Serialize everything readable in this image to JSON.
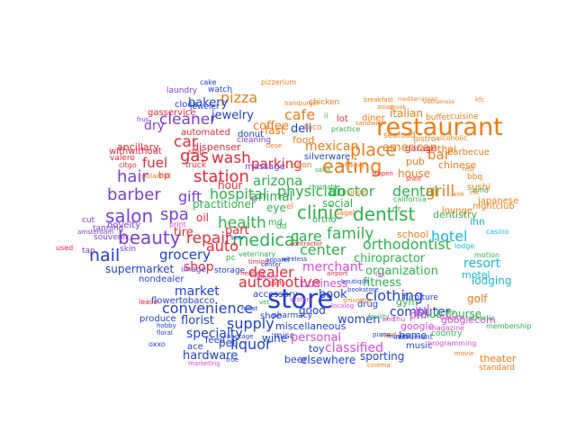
{
  "words": [
    {
      "text": "store",
      "color": "#1f3fd6"
    },
    {
      "text": "restaurant",
      "color": "#f07b14"
    },
    {
      "text": "salon",
      "color": "#7b3fd6"
    },
    {
      "text": "beauty",
      "color": "#7b3fd6"
    },
    {
      "text": "nail",
      "color": "#1f3fd6"
    },
    {
      "text": "hair",
      "color": "#7b3fd6"
    },
    {
      "text": "barber",
      "color": "#7b3fd6"
    },
    {
      "text": "spa",
      "color": "#7b3fd6"
    },
    {
      "text": "eating",
      "color": "#f07b14"
    },
    {
      "text": "place",
      "color": "#f07b14"
    },
    {
      "text": "clinic",
      "color": "#2bb34a"
    },
    {
      "text": "dentist",
      "color": "#2bb34a"
    },
    {
      "text": "medical",
      "color": "#2bb34a"
    },
    {
      "text": "family",
      "color": "#2bb34a"
    },
    {
      "text": "physician",
      "color": "#2bb34a"
    },
    {
      "text": "hospital",
      "color": "#2bb34a"
    },
    {
      "text": "doctor",
      "color": "#2bb34a"
    },
    {
      "text": "dental",
      "color": "#2bb34a"
    },
    {
      "text": "health",
      "color": "#2bb34a"
    },
    {
      "text": "center",
      "color": "#2bb34a"
    },
    {
      "text": "care",
      "color": "#2bb34a"
    },
    {
      "text": "orthodontist",
      "color": "#2bb34a"
    },
    {
      "text": "chiropractor",
      "color": "#2bb34a"
    },
    {
      "text": "station",
      "color": "#e8273a"
    },
    {
      "text": "gas",
      "color": "#e8273a"
    },
    {
      "text": "car",
      "color": "#e8273a"
    },
    {
      "text": "wash",
      "color": "#e8273a"
    },
    {
      "text": "repair",
      "color": "#e8273a"
    },
    {
      "text": "auto",
      "color": "#e8273a"
    },
    {
      "text": "tire",
      "color": "#e8273a"
    },
    {
      "text": "part",
      "color": "#e8273a"
    },
    {
      "text": "oil",
      "color": "#e8273a"
    },
    {
      "text": "fuel",
      "color": "#e8273a"
    },
    {
      "text": "parking",
      "color": "#e8273a"
    },
    {
      "text": "cleaner",
      "color": "#7b3fd6"
    },
    {
      "text": "dry",
      "color": "#7b3fd6"
    },
    {
      "text": "gift",
      "color": "#7b3fd6"
    },
    {
      "text": "pizza",
      "color": "#f07b14"
    },
    {
      "text": "cafe",
      "color": "#f07b14"
    },
    {
      "text": "coffee",
      "color": "#f07b14"
    },
    {
      "text": "grill",
      "color": "#f07b14"
    },
    {
      "text": "bar",
      "color": "#f07b14"
    },
    {
      "text": "food",
      "color": "#f07b14"
    },
    {
      "text": "mexican",
      "color": "#f07b14"
    },
    {
      "text": "american",
      "color": "#f07b14"
    },
    {
      "text": "italian",
      "color": "#f07b14"
    },
    {
      "text": "chinese",
      "color": "#f07b14"
    },
    {
      "text": "thai",
      "color": "#f07b14"
    },
    {
      "text": "fast",
      "color": "#f07b14"
    },
    {
      "text": "deli",
      "color": "#1f3fd6"
    },
    {
      "text": "bakery",
      "color": "#1f3fd6"
    },
    {
      "text": "jewelry",
      "color": "#1f3fd6"
    },
    {
      "text": "arizona",
      "color": "#2bb34a"
    },
    {
      "text": "animal",
      "color": "#2bb34a"
    },
    {
      "text": "hotel",
      "color": "#18b8d8"
    },
    {
      "text": "inn",
      "color": "#18b8d8"
    },
    {
      "text": "resort",
      "color": "#18b8d8"
    },
    {
      "text": "motel",
      "color": "#18b8d8"
    },
    {
      "text": "lodging",
      "color": "#18b8d8"
    },
    {
      "text": "grocery",
      "color": "#1f3fd6"
    },
    {
      "text": "supermarket",
      "color": "#1f3fd6"
    },
    {
      "text": "shop",
      "color": "#e8273a"
    },
    {
      "text": "market",
      "color": "#1f3fd6"
    },
    {
      "text": "convenience",
      "color": "#1f3fd6"
    },
    {
      "text": "supply",
      "color": "#1f3fd6"
    },
    {
      "text": "specialty",
      "color": "#1f3fd6"
    },
    {
      "text": "florist",
      "color": "#1f3fd6"
    },
    {
      "text": "hardware",
      "color": "#1f3fd6"
    },
    {
      "text": "liquor",
      "color": "#1f3fd6"
    },
    {
      "text": "automotive",
      "color": "#e8273a"
    },
    {
      "text": "dealer",
      "color": "#e8273a"
    },
    {
      "text": "merchant",
      "color": "#d64ad6"
    },
    {
      "text": "business",
      "color": "#d64ad6"
    },
    {
      "text": "book",
      "color": "#1f3fd6"
    },
    {
      "text": "clothing",
      "color": "#1f3fd6"
    },
    {
      "text": "organization",
      "color": "#2bb34a"
    },
    {
      "text": "fitness",
      "color": "#2bb34a"
    },
    {
      "text": "computer",
      "color": "#1f3fd6"
    },
    {
      "text": "personal",
      "color": "#d64ad6"
    },
    {
      "text": "classified",
      "color": "#d64ad6"
    },
    {
      "text": "elsewhere",
      "color": "#1f3fd6"
    },
    {
      "text": "sporting",
      "color": "#1f3fd6"
    },
    {
      "text": "women",
      "color": "#1f3fd6"
    },
    {
      "text": "golf",
      "color": "#f07b14"
    },
    {
      "text": "club",
      "color": "#2bb34a"
    },
    {
      "text": "course",
      "color": "#2bb34a"
    },
    {
      "text": "school",
      "color": "#f07b14"
    },
    {
      "text": "dentistry",
      "color": "#2bb34a"
    },
    {
      "text": "sushi",
      "color": "#f07b14"
    },
    {
      "text": "japanese",
      "color": "#f07b14"
    },
    {
      "text": "bbq",
      "color": "#f07b14"
    },
    {
      "text": "theater",
      "color": "#f07b14"
    },
    {
      "text": "standard",
      "color": "#f07b14"
    },
    {
      "text": "jul",
      "color": "#d64ad6"
    },
    {
      "text": "pm",
      "color": "#d64ad6"
    },
    {
      "text": "google",
      "color": "#d64ad6"
    },
    {
      "text": "googlecom",
      "color": "#d64ad6"
    },
    {
      "text": "wine",
      "color": "#1f3fd6"
    },
    {
      "text": "beer",
      "color": "#1f3fd6"
    },
    {
      "text": "toy",
      "color": "#1f3fd6"
    },
    {
      "text": "pet",
      "color": "#1f3fd6"
    },
    {
      "text": "ace",
      "color": "#1f3fd6"
    },
    {
      "text": "feed",
      "color": "#1f3fd6"
    },
    {
      "text": "good",
      "color": "#1f3fd6"
    },
    {
      "text": "miscellaneous",
      "color": "#1f3fd6"
    },
    {
      "text": "misc",
      "color": "#1f3fd6"
    },
    {
      "text": "home",
      "color": "#1f3fd6"
    },
    {
      "text": "music",
      "color": "#1f3fd6"
    },
    {
      "text": "produce",
      "color": "#1f3fd6"
    },
    {
      "text": "flowertobacco",
      "color": "#1f3fd6"
    },
    {
      "text": "nondealer",
      "color": "#1f3fd6"
    },
    {
      "text": "accessory",
      "color": "#1f3fd6"
    },
    {
      "text": "shoe",
      "color": "#1f3fd6"
    },
    {
      "text": "pharmacy",
      "color": "#1f3fd6"
    },
    {
      "text": "drug",
      "color": "#1f3fd6"
    },
    {
      "text": "gym",
      "color": "#2bb34a"
    },
    {
      "text": "tanning",
      "color": "#7b3fd6"
    },
    {
      "text": "novelty",
      "color": "#7b3fd6"
    },
    {
      "text": "souvenir",
      "color": "#7b3fd6"
    },
    {
      "text": "skin",
      "color": "#7b3fd6"
    },
    {
      "text": "cut",
      "color": "#7b3fd6"
    },
    {
      "text": "tan",
      "color": "#7b3fd6"
    },
    {
      "text": "hour",
      "color": "#e8273a"
    },
    {
      "text": "practitioner",
      "color": "#2bb34a"
    },
    {
      "text": "eye",
      "color": "#2bb34a"
    },
    {
      "text": "social",
      "color": "#2bb34a"
    },
    {
      "text": "house",
      "color": "#f07b14"
    },
    {
      "text": "pub",
      "color": "#f07b14"
    },
    {
      "text": "lounge",
      "color": "#f07b14"
    },
    {
      "text": "nightclub",
      "color": "#f07b14"
    },
    {
      "text": "barbecue",
      "color": "#f07b14"
    },
    {
      "text": "buffet",
      "color": "#f07b14"
    },
    {
      "text": "cuisine",
      "color": "#f07b14"
    },
    {
      "text": "diner",
      "color": "#f07b14"
    },
    {
      "text": "taco",
      "color": "#f07b14"
    },
    {
      "text": "seafood",
      "color": "#f07b14"
    },
    {
      "text": "bistro",
      "color": "#f07b14"
    },
    {
      "text": "alcoholic",
      "color": "#f07b14"
    },
    {
      "text": "chicken",
      "color": "#f07b14"
    },
    {
      "text": "breakfast",
      "color": "#f07b14"
    },
    {
      "text": "mediterranean",
      "color": "#f07b14"
    },
    {
      "text": "vietnamese",
      "color": "#f07b14"
    },
    {
      "text": "pizzerium",
      "color": "#f07b14"
    },
    {
      "text": "cake",
      "color": "#1f3fd6"
    },
    {
      "text": "laundry",
      "color": "#7b3fd6"
    },
    {
      "text": "watch",
      "color": "#1f3fd6"
    },
    {
      "text": "clock",
      "color": "#1f3fd6"
    },
    {
      "text": "jeweler",
      "color": "#1f3fd6"
    },
    {
      "text": "gasservice",
      "color": "#e8273a"
    },
    {
      "text": "ancillary",
      "color": "#e8273a"
    },
    {
      "text": "automated",
      "color": "#e8273a"
    },
    {
      "text": "dispenser",
      "color": "#e8273a"
    },
    {
      "text": "withwithout",
      "color": "#e8273a"
    },
    {
      "text": "valero",
      "color": "#e8273a"
    },
    {
      "text": "stop",
      "color": "#e8273a"
    },
    {
      "text": "citgo",
      "color": "#e8273a"
    },
    {
      "text": "truck",
      "color": "#e8273a"
    },
    {
      "text": "bp",
      "color": "#e8273a"
    },
    {
      "text": "donut",
      "color": "#1f3fd6"
    },
    {
      "text": "cleaning",
      "color": "#7b3fd6"
    },
    {
      "text": "massage",
      "color": "#7b3fd6"
    },
    {
      "text": "silverware",
      "color": "#1f3fd6"
    },
    {
      "text": "soon",
      "color": "#f07b14"
    },
    {
      "text": "garage",
      "color": "#e8273a"
    },
    {
      "text": "lot",
      "color": "#e8273a"
    },
    {
      "text": "el",
      "color": "#f07b14"
    },
    {
      "text": "ortho",
      "color": "#2bb34a"
    },
    {
      "text": "md",
      "color": "#2bb34a"
    },
    {
      "text": "dr",
      "color": "#2bb34a"
    },
    {
      "text": "dd",
      "color": "#2bb34a"
    },
    {
      "text": "pc",
      "color": "#2bb34a"
    },
    {
      "text": "veterinary",
      "color": "#2bb34a"
    },
    {
      "text": "storage",
      "color": "#1f3fd6"
    },
    {
      "text": "used",
      "color": "#e8273a"
    },
    {
      "text": "amsterdam",
      "color": "#7b3fd6"
    },
    {
      "text": "image",
      "color": "#7b3fd6"
    },
    {
      "text": "print",
      "color": "#d64ad6"
    },
    {
      "text": "lease",
      "color": "#e8273a"
    },
    {
      "text": "oxxo",
      "color": "#1f3fd6"
    },
    {
      "text": "marketing",
      "color": "#d64ad6"
    },
    {
      "text": "true",
      "color": "#1f3fd6"
    },
    {
      "text": "package",
      "color": "#1f3fd6"
    },
    {
      "text": "hobby",
      "color": "#1f3fd6"
    },
    {
      "text": "floral",
      "color": "#1f3fd6"
    },
    {
      "text": "meat",
      "color": "#1f3fd6"
    },
    {
      "text": "furniture",
      "color": "#1f3fd6"
    },
    {
      "text": "magazine",
      "color": "#d64ad6"
    },
    {
      "text": "datum",
      "color": "#d64ad6"
    },
    {
      "text": "rec",
      "color": "#2bb34a"
    },
    {
      "text": "athletic",
      "color": "#2bb34a"
    },
    {
      "text": "membership",
      "color": "#2bb34a"
    },
    {
      "text": "country",
      "color": "#2bb34a"
    },
    {
      "text": "programming",
      "color": "#d64ad6"
    },
    {
      "text": "movie",
      "color": "#f07b14"
    },
    {
      "text": "cinema",
      "color": "#f07b14"
    },
    {
      "text": "instrument",
      "color": "#1f3fd6"
    },
    {
      "text": "wed",
      "color": "#d64ad6"
    },
    {
      "text": "thu",
      "color": "#d64ad6"
    },
    {
      "text": "fax",
      "color": "#d64ad6"
    },
    {
      "text": "motion",
      "color": "#2bb34a"
    },
    {
      "text": "casino",
      "color": "#18b8d8"
    },
    {
      "text": "lodge",
      "color": "#18b8d8"
    },
    {
      "text": "dmd",
      "color": "#2bb34a"
    },
    {
      "text": "etc",
      "color": "#f07b14"
    },
    {
      "text": "wok",
      "color": "#f07b14"
    },
    {
      "text": "sport",
      "color": "#f07b14"
    },
    {
      "text": "musical",
      "color": "#1f3fd6"
    },
    {
      "text": "piano",
      "color": "#1f3fd6"
    },
    {
      "text": "serv",
      "color": "#1f3fd6"
    },
    {
      "text": "contractor",
      "color": "#e8273a"
    },
    {
      "text": "practice",
      "color": "#2bb34a"
    },
    {
      "text": "kfc",
      "color": "#f07b14"
    },
    {
      "text": "asian",
      "color": "#f07b14"
    },
    {
      "text": "greek",
      "color": "#f07b14"
    },
    {
      "text": "hamburger",
      "color": "#f07b14"
    },
    {
      "text": "sandwich",
      "color": "#f07b14"
    },
    {
      "text": "rest",
      "color": "#f07b14"
    },
    {
      "text": "drinking",
      "color": "#f07b14"
    },
    {
      "text": "airport",
      "color": "#e8273a"
    },
    {
      "text": "charitable",
      "color": "#2bb34a"
    },
    {
      "text": "polaroid",
      "color": "#f07b14"
    },
    {
      "text": "stopen",
      "color": "#e8273a"
    },
    {
      "text": "california",
      "color": "#2bb34a"
    },
    {
      "text": "ii",
      "color": "#2bb34a"
    },
    {
      "text": "close",
      "color": "#f07b14"
    },
    {
      "text": "frus",
      "color": "#7b3fd6"
    },
    {
      "text": "shell",
      "color": "#e8273a"
    },
    {
      "text": "sirloin",
      "color": "#f07b14"
    },
    {
      "text": "mi",
      "color": "#d64ad6"
    },
    {
      "text": "saint",
      "color": "#2bb34a"
    },
    {
      "text": "bagel",
      "color": "#f07b14"
    },
    {
      "text": "boutique",
      "color": "#1f3fd6"
    },
    {
      "text": "bookstore",
      "color": "#1f3fd6"
    },
    {
      "text": "smoothie",
      "color": "#f07b14"
    },
    {
      "text": "localog",
      "color": "#d64ad6"
    },
    {
      "text": "facility",
      "color": "#2bb34a"
    },
    {
      "text": "system",
      "color": "#d64ad6"
    },
    {
      "text": "heating",
      "color": "#e8273a"
    },
    {
      "text": "timing",
      "color": "#e8273a"
    },
    {
      "text": "vet",
      "color": "#2bb34a"
    },
    {
      "text": "parts",
      "color": "#e8273a"
    },
    {
      "text": "finance",
      "color": "#d64ad6"
    },
    {
      "text": "apparel",
      "color": "#1f3fd6"
    },
    {
      "text": "wireless",
      "color": "#1f3fd6"
    },
    {
      "text": "center",
      "color": "#1f3fd6"
    }
  ]
}
